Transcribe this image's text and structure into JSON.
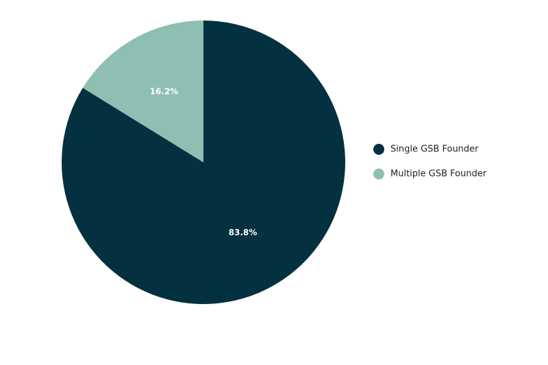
{
  "chart_data": {
    "type": "pie",
    "categories": [
      "Single GSB Founder",
      "Multiple GSB Founder"
    ],
    "values": [
      83.8,
      16.2
    ],
    "value_labels": [
      "83.8%",
      "16.2%"
    ],
    "colors": [
      "#04313f",
      "#8fbfb2"
    ],
    "legend": "right"
  }
}
